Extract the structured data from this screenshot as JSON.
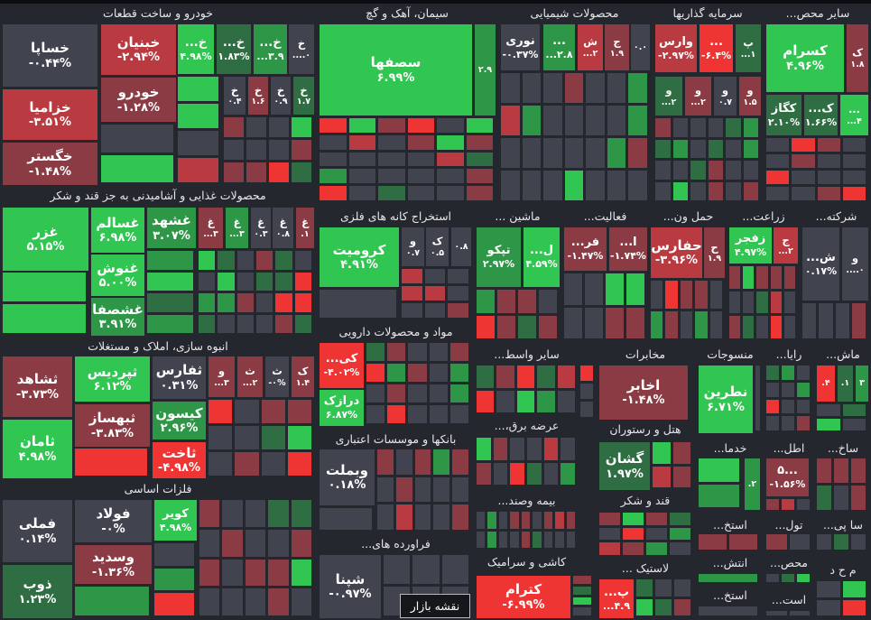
{
  "colors": {
    "n": "#41444f",
    "a": "#8b3b44",
    "b": "#b93a40",
    "r": "#ef3434",
    "d": "#2f6d43",
    "m": "#2e9747",
    "g": "#31c551",
    "background": "#25272f"
  },
  "tooltip": "نقشه بازار",
  "sectors": [
    {
      "title": "خودرو و ساخت قطعات",
      "tiles": [
        {
          "sym": "خساپا",
          "pct": "-۰.۴۴%",
          "c": "n"
        },
        {
          "sym": "خزامیا",
          "pct": "-۳.۵۱%",
          "c": "b"
        },
        {
          "sym": "خگستر",
          "pct": "-۱.۴۸%",
          "c": "a"
        },
        {
          "sym": "خبنیان",
          "pct": "-۲.۹۴%",
          "c": "b"
        },
        {
          "sym": "خودرو",
          "pct": "-۱.۲۸%",
          "c": "a"
        },
        {
          "sym": "خ...",
          "pct": "۴.۹۸%",
          "c": "g"
        },
        {
          "sym": "خ...",
          "pct": "۱.۸۳%",
          "c": "d"
        },
        {
          "sym": "خ...",
          "pct": "...۳.۹",
          "c": "m"
        },
        {
          "sym": "خ",
          "pct": "....۰",
          "c": "n"
        },
        {
          "sym": "خ",
          "pct": "۰.۴",
          "c": "n"
        },
        {
          "sym": "خ",
          "pct": "۱.۶",
          "c": "a"
        },
        {
          "sym": "خ",
          "pct": "۰.۹",
          "c": "n"
        },
        {
          "sym": "خ",
          "pct": "۱.۷",
          "c": "d"
        }
      ],
      "fill": "ngggnbanngnnnaaardnn"
    },
    {
      "title": "محصولات غذایی و آشامیدنی به جز قند و شکر",
      "tiles": [
        {
          "sym": "غزر",
          "pct": "۵.۱۵%",
          "c": "g"
        },
        {
          "sym": "غسالم",
          "pct": "۶.۹۸%",
          "c": "g"
        },
        {
          "sym": "غنوش",
          "pct": "۵.۰۰%",
          "c": "g"
        },
        {
          "sym": "غشصفا",
          "pct": "۳.۹۱%",
          "c": "m"
        },
        {
          "sym": "غشهد",
          "pct": "۳.۰۷%",
          "c": "m"
        },
        {
          "sym": "غ",
          "pct": "...۳",
          "c": "a"
        },
        {
          "sym": "غ",
          "pct": "...۳",
          "c": "m"
        },
        {
          "sym": "غ",
          "pct": "۰.۳",
          "c": "n"
        },
        {
          "sym": "غ",
          "pct": "۰.۸",
          "c": "n"
        },
        {
          "sym": "غ",
          "pct": ".۱",
          "c": "a"
        }
      ],
      "fill": "ggmgdmgdnadnngnddrmmanrrdnnnad"
    },
    {
      "title": "انبوه سازی، املاک و مستغلات",
      "tiles": [
        {
          "sym": "ثشاهد",
          "pct": "-۳.۷۳%",
          "c": "a"
        },
        {
          "sym": "ثامان",
          "pct": "۴.۹۸%",
          "c": "g"
        },
        {
          "sym": "ثپردیس",
          "pct": "۶.۱۲%",
          "c": "g"
        },
        {
          "sym": "ثبهساز",
          "pct": "-۳.۸۳%",
          "c": "a"
        },
        {
          "sym": "ثفارس",
          "pct": "۰.۳۱%",
          "c": "n"
        },
        {
          "sym": "کیسون",
          "pct": "۲.۹۶%",
          "c": "m"
        },
        {
          "sym": "ثاخت",
          "pct": "-۴.۹۸%",
          "c": "r"
        },
        {
          "sym": "و",
          "pct": "...۳",
          "c": "a"
        },
        {
          "sym": "ث",
          "pct": "...۲",
          "c": "a"
        },
        {
          "sym": "ث",
          "pct": "-۰%",
          "c": "n"
        },
        {
          "sym": "ک",
          "pct": "۱.۴",
          "c": "a"
        }
      ],
      "fill": "rrnaanndgnan"
    },
    {
      "title": "فلزات اساسی",
      "tiles": [
        {
          "sym": "فملی",
          "pct": "۰.۱۴%",
          "c": "n"
        },
        {
          "sym": "ذوب",
          "pct": "۱.۲۳%",
          "c": "d"
        },
        {
          "sym": "فولاد",
          "pct": "-۰%",
          "c": "n"
        },
        {
          "sym": "وسدید",
          "pct": "-۱.۳۶%",
          "c": "a"
        },
        {
          "sym": "کویر",
          "pct": "۴.۹۸%",
          "c": "g"
        }
      ],
      "fill": "mnmrannddnannaanaagnnnan"
    },
    {
      "title": "سیمان، آهک و گچ",
      "tiles": [
        {
          "sym": "سصفها",
          "pct": "۶.۹۹%",
          "c": "g"
        },
        {
          "sym": "",
          "pct": "۲.۹",
          "c": "m"
        }
      ],
      "fill": "rgarngnbnagannnnbdmnnnnarndnna"
    },
    {
      "title": "محصولات شیمیایی",
      "tiles": [
        {
          "sym": "نوری",
          "pct": "-۰.۳۷%",
          "c": "n"
        },
        {
          "sym": "...",
          "pct": "...۲.۸",
          "c": "m"
        },
        {
          "sym": "ش",
          "pct": "...۲",
          "c": "b"
        },
        {
          "sym": "ج",
          "pct": "۱.۹",
          "c": "a"
        },
        {
          "sym": "",
          "pct": "۰.۰",
          "c": "n"
        }
      ],
      "fill": "nnnannmbmnnnnmnnnnnmannngnnn"
    },
    {
      "title": "سرمایه گذاریها",
      "tiles": [
        {
          "sym": "وارس",
          "pct": "-۲.۹۷%",
          "c": "b"
        },
        {
          "sym": "...",
          "pct": "-۶.۴%",
          "c": "r"
        },
        {
          "sym": "پ",
          "pct": "...۱",
          "c": "d"
        },
        {
          "sym": "و",
          "pct": "...۲",
          "c": "d"
        },
        {
          "sym": "و",
          "pct": "...۲",
          "c": "a"
        },
        {
          "sym": "و",
          "pct": "۰.۷",
          "c": "n"
        },
        {
          "sym": "و",
          "pct": "۱.۵",
          "c": "a"
        }
      ],
      "fill": "annndmdmndnmnndannngnan"
    },
    {
      "title": "سایر محص...",
      "tiles": [
        {
          "sym": "کسرام",
          "pct": "۴.۹۶%",
          "c": "g"
        },
        {
          "sym": "ک",
          "pct": "۱.۸",
          "c": "a"
        },
        {
          "sym": "کگاز",
          "pct": "۲.۱۰%",
          "c": "d"
        },
        {
          "sym": "ک...",
          "pct": "۱.۶۶%",
          "c": "d"
        },
        {
          "sym": "...",
          "pct": "...۴",
          "c": "g"
        }
      ],
      "fill": "nrannannrnnnnnar"
    },
    {
      "title": "استخراج کانه های فلزی",
      "tiles": [
        {
          "sym": "کرومیت",
          "pct": "۴.۹۱%",
          "c": "g"
        },
        {
          "sym": "و",
          "pct": "۰.۷",
          "c": "n"
        },
        {
          "sym": "ک",
          "pct": "۰.۵",
          "c": "n"
        },
        {
          "sym": "",
          "pct": "۰.۸",
          "c": "n"
        }
      ],
      "fill": "nbnnbbnnna"
    },
    {
      "title": "ماشین ...",
      "tiles": [
        {
          "sym": "تپکو",
          "pct": "۲.۹۷%",
          "c": "m"
        },
        {
          "sym": "ل...",
          "pct": "۴.۵۹%",
          "c": "g"
        }
      ],
      "fill": "maanrada"
    },
    {
      "title": "فعالیت...",
      "tiles": [
        {
          "sym": "فر...",
          "pct": "-۱.۴۷%",
          "c": "a"
        },
        {
          "sym": "ا...",
          "pct": "-۱.۷۴%",
          "c": "a"
        }
      ],
      "fill": "nnggnnaa"
    },
    {
      "title": "حمل ون...",
      "tiles": [
        {
          "sym": "حفارس",
          "pct": "-۳.۹۶%",
          "c": "b"
        },
        {
          "sym": "ح",
          "pct": "۱.۹",
          "c": "a"
        }
      ],
      "fill": "nraanmanmn"
    },
    {
      "title": "زراعت...",
      "tiles": [
        {
          "sym": "زفجر",
          "pct": "۴.۹۷%",
          "c": "g"
        },
        {
          "sym": "ج",
          "pct": "...۲",
          "c": "b"
        }
      ],
      "fill": "agaaanndbnadnrn"
    },
    {
      "title": "شرکته...",
      "tiles": [
        {
          "sym": "ش...",
          "pct": "۰.۱۷%",
          "c": "n"
        },
        {
          "sym": "و",
          "pct": "....۰",
          "c": "n"
        }
      ],
      "fill": "nnna"
    },
    {
      "title": "مواد و محصولات دارویی",
      "tiles": [
        {
          "sym": "کی...",
          "pct": "-۴.۰۲%",
          "c": "r"
        },
        {
          "sym": "درازک",
          "pct": "۶.۸۷%",
          "c": "g"
        }
      ],
      "fill": "dannarmanmnannmnrnnn"
    },
    {
      "title": "سایر واسط...",
      "tiles": [],
      "fill": "dardbrngmn"
    },
    {
      "title": "عرضه برق،...",
      "tiles": [],
      "fill": "gannbnanrdnm"
    },
    {
      "title": "بانکها و موسسات اعتباری",
      "tiles": [
        {
          "sym": "وبملت",
          "pct": "۰.۱۸%",
          "c": "n"
        }
      ],
      "fill": "nanamanannnnbn"
    },
    {
      "title": "بیمه وصند...",
      "tiles": [],
      "fill": "nmnaanabanmnnadnn"
    },
    {
      "title": "فراورده های...",
      "tiles": [
        {
          "sym": "شپنا",
          "pct": "-۰.۹۷%",
          "c": "n"
        }
      ],
      "fill": "nnnnnn"
    },
    {
      "title": "کاشی و سرامیک",
      "tiles": [
        {
          "sym": "کترام",
          "pct": "-۶.۹۹%",
          "c": "r"
        }
      ],
      "fill": "adgn"
    },
    {
      "title": "مخابرات",
      "tiles": [
        {
          "sym": "اخابر",
          "pct": "-۱.۴۸%",
          "c": "a"
        }
      ],
      "fill": "rnn"
    },
    {
      "title": "هتل و رستوران",
      "tiles": [
        {
          "sym": "گشان",
          "pct": "۱.۹۷%",
          "c": "d"
        }
      ],
      "fill": "gaba"
    },
    {
      "title": "قند و شکر",
      "tiles": [],
      "fill": "agadnrnmbamn"
    },
    {
      "title": "لاستیک ...",
      "tiles": [
        {
          "sym": "پ...",
          "pct": "...۴.۹",
          "c": "r"
        }
      ],
      "fill": "dnngda"
    },
    {
      "title": "منسوجات",
      "tiles": [
        {
          "sym": "نطرین",
          "pct": "۶.۷۱%",
          "c": "g"
        }
      ],
      "fill": "n"
    },
    {
      "title": "رایا...",
      "tiles": [],
      "fill": "dmnnnmrnnnna"
    },
    {
      "title": "ماش...",
      "tiles": [
        {
          "sym": "",
          "pct": ".۴",
          "c": "r"
        },
        {
          "sym": "",
          "pct": ".۱",
          "c": "d"
        },
        {
          "sym": "",
          "pct": "۳",
          "c": "m"
        }
      ],
      "fill": "ndgn"
    },
    {
      "title": "خدما...",
      "tiles": [
        {
          "sym": "",
          "pct": ".۲",
          "c": "m"
        }
      ],
      "fill": "gm"
    },
    {
      "title": "اطل...",
      "tiles": [
        {
          "sym": "...۵",
          "pct": "-۱.۵۶%",
          "c": "a"
        }
      ],
      "fill": "abn"
    },
    {
      "title": "ساخ...",
      "tiles": [],
      "fill": "aaadn"
    },
    {
      "title": "استخ...",
      "tiles": [],
      "fill": "aa"
    },
    {
      "title": "تول...",
      "tiles": [],
      "fill": "an"
    },
    {
      "title": "سا پی...",
      "tiles": [],
      "fill": "ndn"
    },
    {
      "title": "انتش...",
      "tiles": [],
      "fill": "m"
    },
    {
      "title": "محص...",
      "tiles": [],
      "fill": "ndg"
    },
    {
      "title": "م  ح  د",
      "tiles": [],
      "fill": "ngnr"
    },
    {
      "title": "استخ...",
      "tiles": [],
      "fill": "n"
    },
    {
      "title": "است...",
      "tiles": [],
      "fill": "nn"
    }
  ]
}
